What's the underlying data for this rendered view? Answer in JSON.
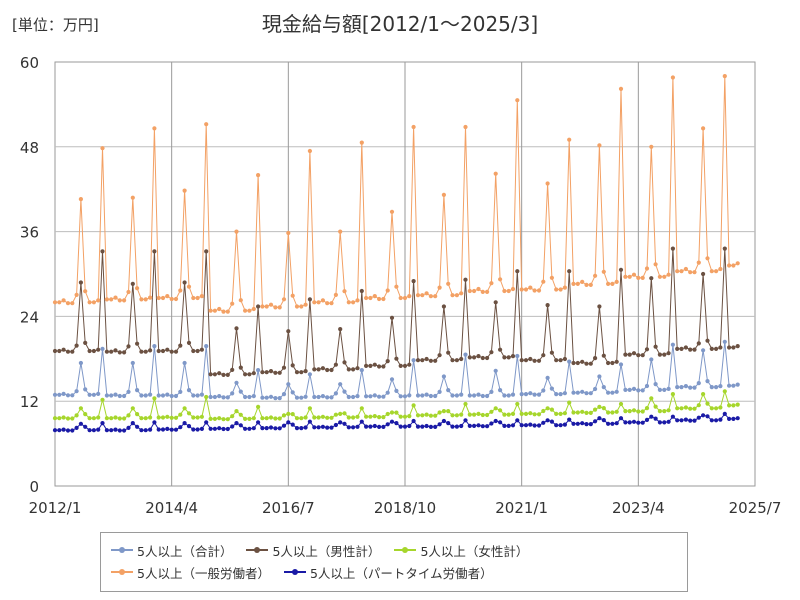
{
  "unit_label": "[単位：万円]",
  "title": "現金給与額[2012/1～2025/3]",
  "chart_data": {
    "type": "line",
    "title": "現金給与額[2012/1～2025/3]",
    "unit": "万円",
    "x_axis": {
      "tick_labels": [
        "2012/1",
        "2014/4",
        "2016/7",
        "2018/10",
        "2021/1",
        "2023/4",
        "2025/7"
      ],
      "start": "2012/1",
      "end": "2025/7",
      "grid": true
    },
    "y_axis": {
      "tick_labels": [
        "0",
        "12",
        "24",
        "36",
        "48",
        "60"
      ],
      "ylim": [
        0,
        60
      ],
      "grid": true
    },
    "legend_position": "bottom",
    "series": [
      {
        "name": "5人以上（合計）",
        "color": "#7f98c8",
        "peaks": {
          "summer": [
            17.4,
            17.4,
            17.4,
            14.6,
            14.4,
            14.4,
            15.1,
            15.5,
            16.3,
            15.3,
            15.5,
            17.9,
            19.2,
            21.2
          ],
          "december": [
            19.4,
            19.8,
            19.8,
            16.4,
            15.8,
            16.4,
            17.8,
            18.6,
            18.4,
            17.6,
            17.2,
            20.0,
            20.4
          ]
        },
        "base": [
          12.9,
          12.8,
          12.8,
          12.6,
          12.5,
          12.6,
          12.7,
          12.8,
          12.8,
          13.0,
          13.2,
          13.6,
          14.0,
          14.2
        ]
      },
      {
        "name": "5人以上（男性計）",
        "color": "#6b5142",
        "peaks": {
          "summer": [
            28.8,
            28.6,
            28.8,
            22.3,
            21.9,
            22.2,
            23.8,
            25.4,
            26.0,
            25.6,
            25.4,
            29.4,
            30.0,
            34.4
          ],
          "december": [
            33.2,
            33.2,
            33.2,
            25.4,
            26.4,
            27.6,
            29.0,
            29.2,
            30.4,
            30.4,
            30.6,
            33.6,
            33.6
          ]
        },
        "base": [
          19.1,
          19.0,
          19.1,
          15.8,
          16.1,
          16.5,
          17.0,
          17.8,
          18.2,
          17.8,
          17.4,
          18.6,
          19.4,
          19.6
        ]
      },
      {
        "name": "5人以上（女性計）",
        "color": "#a6d62c",
        "peaks": {
          "summer": [
            11.0,
            11.0,
            11.0,
            10.6,
            10.2,
            10.2,
            10.4,
            10.6,
            11.0,
            11.0,
            11.2,
            12.4,
            13.0,
            14.0
          ],
          "december": [
            12.2,
            12.4,
            12.6,
            11.2,
            11.0,
            11.0,
            11.4,
            11.6,
            11.6,
            11.8,
            11.6,
            13.0,
            13.4
          ]
        },
        "base": [
          9.6,
          9.6,
          9.7,
          9.5,
          9.6,
          9.7,
          9.8,
          10.0,
          10.1,
          10.2,
          10.4,
          10.6,
          11.0,
          11.4
        ]
      },
      {
        "name": "5人以上（一般労働者）",
        "color": "#f3a165",
        "peaks": {
          "summer": [
            40.6,
            40.8,
            41.8,
            36.0,
            35.8,
            36.0,
            38.8,
            41.2,
            44.2,
            42.8,
            48.2,
            48.0,
            50.6,
            59.2
          ],
          "december": [
            47.8,
            50.6,
            51.2,
            44.0,
            47.4,
            48.6,
            50.8,
            50.8,
            54.6,
            49.0,
            56.2,
            57.8,
            58.0
          ]
        },
        "base": [
          26.0,
          26.4,
          26.6,
          24.8,
          25.4,
          26.0,
          26.6,
          27.0,
          27.6,
          27.8,
          28.6,
          29.6,
          30.4,
          31.2
        ]
      },
      {
        "name": "5人以上（パートタイム労働者）",
        "color": "#1a1aa6",
        "peaks": {
          "summer": [
            8.8,
            8.9,
            8.9,
            8.9,
            9.0,
            9.0,
            9.1,
            9.2,
            9.2,
            9.3,
            9.6,
            9.8,
            10.0,
            10.4
          ],
          "december": [
            8.9,
            9.0,
            9.0,
            9.0,
            9.1,
            9.1,
            9.2,
            9.3,
            9.3,
            9.4,
            9.6,
            9.8,
            10.2
          ]
        },
        "base": [
          7.9,
          7.9,
          8.0,
          8.1,
          8.2,
          8.3,
          8.4,
          8.4,
          8.5,
          8.6,
          8.8,
          9.0,
          9.3,
          9.5
        ]
      }
    ]
  }
}
